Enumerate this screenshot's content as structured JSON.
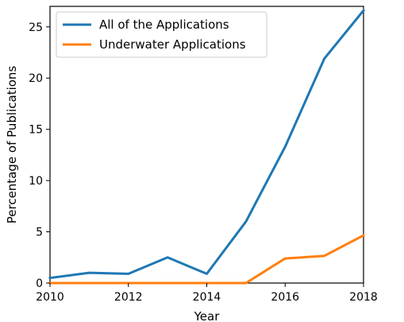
{
  "chart_data": {
    "type": "line",
    "title": "",
    "xlabel": "Year",
    "ylabel": "Percentage of Publications",
    "xlim": [
      2010,
      2018
    ],
    "ylim": [
      0,
      27
    ],
    "xticks": [
      2010,
      2012,
      2014,
      2016,
      2018
    ],
    "yticks": [
      0,
      5,
      10,
      15,
      20,
      25
    ],
    "grid": false,
    "legend_position": "top-left",
    "x": [
      2010,
      2011,
      2012,
      2013,
      2014,
      2015,
      2016,
      2017,
      2018
    ],
    "series": [
      {
        "name": "All of the Applications",
        "color": "#1f77b4",
        "values": [
          0.5,
          1.0,
          0.9,
          2.5,
          0.9,
          6.0,
          13.3,
          21.9,
          26.6
        ]
      },
      {
        "name": "Underwater Applications",
        "color": "#ff7f0e",
        "values": [
          0,
          0,
          0,
          0,
          0,
          0,
          2.4,
          2.65,
          4.65
        ]
      }
    ]
  }
}
